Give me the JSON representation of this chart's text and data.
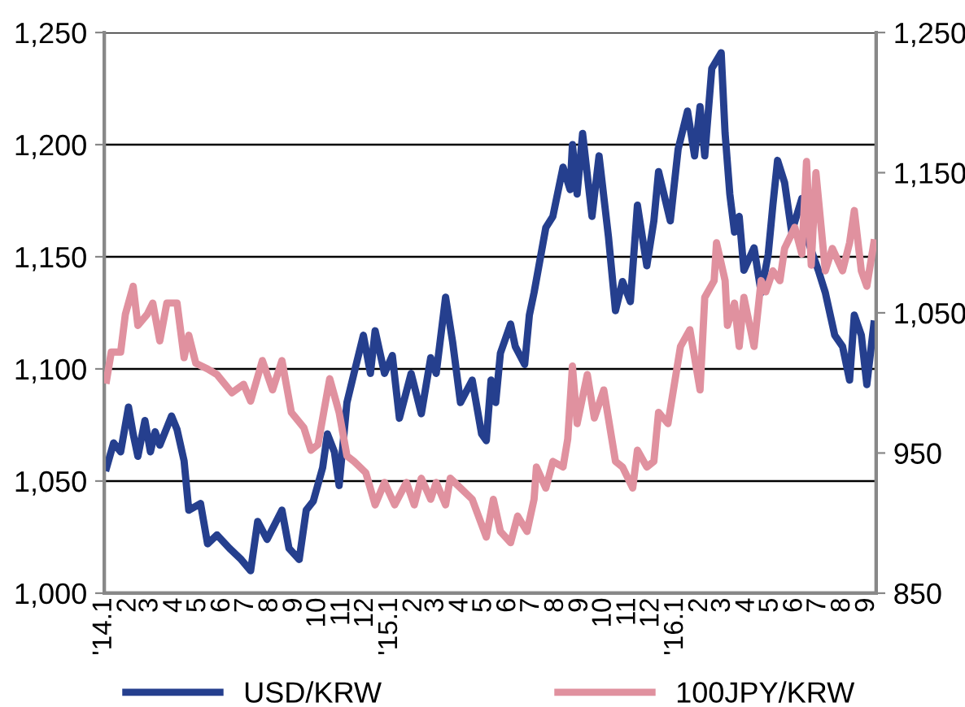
{
  "chart_data": {
    "type": "line",
    "legend": "bottom",
    "grid": "y",
    "line_style": "solid",
    "marker": "none",
    "xlim": [
      "2014-01-01",
      "2016-09-13"
    ],
    "xticks": [
      {
        "value": "2014-01",
        "label": "'14.1"
      },
      {
        "value": "2014-02",
        "label": "2"
      },
      {
        "value": "2014-03",
        "label": "3"
      },
      {
        "value": "2014-04",
        "label": "4"
      },
      {
        "value": "2014-05",
        "label": "5"
      },
      {
        "value": "2014-06",
        "label": "6"
      },
      {
        "value": "2014-07",
        "label": "7"
      },
      {
        "value": "2014-08",
        "label": "8"
      },
      {
        "value": "2014-09",
        "label": "9"
      },
      {
        "value": "2014-10",
        "label": "10"
      },
      {
        "value": "2014-11",
        "label": "11"
      },
      {
        "value": "2014-12",
        "label": "12"
      },
      {
        "value": "2015-01",
        "label": "'15.1"
      },
      {
        "value": "2015-02",
        "label": "2"
      },
      {
        "value": "2015-03",
        "label": "3"
      },
      {
        "value": "2015-04",
        "label": "4"
      },
      {
        "value": "2015-05",
        "label": "5"
      },
      {
        "value": "2015-06",
        "label": "6"
      },
      {
        "value": "2015-07",
        "label": "7"
      },
      {
        "value": "2015-08",
        "label": "8"
      },
      {
        "value": "2015-09",
        "label": "9"
      },
      {
        "value": "2015-10",
        "label": "10"
      },
      {
        "value": "2015-11",
        "label": "11"
      },
      {
        "value": "2015-12",
        "label": "12"
      },
      {
        "value": "2016-01",
        "label": "'16.1"
      },
      {
        "value": "2016-02",
        "label": "2"
      },
      {
        "value": "2016-03",
        "label": "3"
      },
      {
        "value": "2016-04",
        "label": "4"
      },
      {
        "value": "2016-05",
        "label": "5"
      },
      {
        "value": "2016-06",
        "label": "6"
      },
      {
        "value": "2016-07",
        "label": "7"
      },
      {
        "value": "2016-08",
        "label": "8"
      },
      {
        "value": "2016-09",
        "label": "9"
      }
    ],
    "ylim": [
      1000,
      1250
    ],
    "yticks": [
      {
        "value": 1000,
        "label": "1,000"
      },
      {
        "value": 1050,
        "label": "1,050"
      },
      {
        "value": 1100,
        "label": "1,100"
      },
      {
        "value": 1150,
        "label": "1,150"
      },
      {
        "value": 1200,
        "label": "1,200"
      },
      {
        "value": 1250,
        "label": "1,250"
      }
    ],
    "y2lim": [
      850,
      1250
    ],
    "y2ticks": [
      850,
      950,
      {
        "value": 1050,
        "label": "1,050"
      },
      {
        "value": 1150,
        "label": "1,150"
      },
      {
        "value": 1250,
        "label": "1,250"
      }
    ],
    "series": [
      {
        "name": "USD/KRW",
        "color": "#253f8e",
        "x": [
          "2014-01-04",
          "2014-01-13",
          "2014-01-22",
          "2014-02-01",
          "2014-02-07",
          "2014-02-13",
          "2014-02-22",
          "2014-03-01",
          "2014-03-07",
          "2014-03-13",
          "2014-03-28",
          "2014-04-04",
          "2014-04-13",
          "2014-04-19",
          "2014-05-04",
          "2014-05-13",
          "2014-05-25",
          "2014-06-10",
          "2014-06-25",
          "2014-07-07",
          "2014-07-16",
          "2014-07-28",
          "2014-08-16",
          "2014-08-25",
          "2014-09-07",
          "2014-09-16",
          "2014-09-25",
          "2014-10-07",
          "2014-10-13",
          "2014-10-22",
          "2014-10-28",
          "2014-11-07",
          "2014-11-16",
          "2014-11-28",
          "2014-12-07",
          "2014-12-13",
          "2014-12-25",
          "2015-01-04",
          "2015-01-13",
          "2015-01-28",
          "2015-02-10",
          "2015-02-22",
          "2015-03-01",
          "2015-03-13",
          "2015-03-22",
          "2015-04-01",
          "2015-04-16",
          "2015-04-28",
          "2015-05-04",
          "2015-05-10",
          "2015-05-16",
          "2015-05-22",
          "2015-06-04",
          "2015-06-10",
          "2015-06-22",
          "2015-06-28",
          "2015-07-04",
          "2015-07-19",
          "2015-07-28",
          "2015-08-10",
          "2015-08-19",
          "2015-08-22",
          "2015-08-28",
          "2015-09-04",
          "2015-09-16",
          "2015-09-25",
          "2015-10-07",
          "2015-10-16",
          "2015-10-25",
          "2015-11-04",
          "2015-11-13",
          "2015-11-25",
          "2015-12-04",
          "2015-12-10",
          "2015-12-25",
          "2016-01-04",
          "2016-01-16",
          "2016-01-25",
          "2016-02-01",
          "2016-02-07",
          "2016-02-16",
          "2016-02-28",
          "2016-03-04",
          "2016-03-10",
          "2016-03-16",
          "2016-03-22",
          "2016-03-28",
          "2016-04-10",
          "2016-04-19",
          "2016-04-28",
          "2016-05-04",
          "2016-05-10",
          "2016-05-19",
          "2016-05-28",
          "2016-06-10",
          "2016-06-19",
          "2016-07-01",
          "2016-07-10",
          "2016-07-22",
          "2016-08-01",
          "2016-08-10",
          "2016-08-16",
          "2016-08-25",
          "2016-09-01",
          "2016-09-10"
        ],
        "values": [
          1056,
          1067,
          1063,
          1083,
          1071,
          1061,
          1077,
          1063,
          1072,
          1066,
          1079,
          1073,
          1059,
          1037,
          1040,
          1022,
          1026,
          1020,
          1015,
          1010,
          1032,
          1024,
          1037,
          1020,
          1015,
          1037,
          1041,
          1056,
          1071,
          1063,
          1048,
          1085,
          1098,
          1115,
          1098,
          1117,
          1098,
          1106,
          1078,
          1098,
          1080,
          1105,
          1098,
          1132,
          1112,
          1085,
          1095,
          1071,
          1068,
          1095,
          1085,
          1107,
          1120,
          1110,
          1102,
          1124,
          1134,
          1163,
          1168,
          1190,
          1180,
          1200,
          1178,
          1205,
          1168,
          1195,
          1159,
          1126,
          1139,
          1130,
          1173,
          1146,
          1166,
          1188,
          1166,
          1198,
          1215,
          1195,
          1217,
          1195,
          1234,
          1241,
          1205,
          1178,
          1161,
          1168,
          1144,
          1154,
          1134,
          1151,
          1173,
          1193,
          1183,
          1161,
          1176,
          1156,
          1144,
          1134,
          1115,
          1110,
          1095,
          1124,
          1115,
          1093,
          1120
        ]
      },
      {
        "name": "100JPY/KRW",
        "color": "#e0919f",
        "axis": "y2",
        "x": [
          "2014-01-04",
          "2014-01-10",
          "2014-01-22",
          "2014-01-28",
          "2014-02-07",
          "2014-02-13",
          "2014-02-25",
          "2014-03-04",
          "2014-03-13",
          "2014-03-22",
          "2014-04-04",
          "2014-04-13",
          "2014-04-19",
          "2014-04-28",
          "2014-05-13",
          "2014-05-25",
          "2014-06-13",
          "2014-06-28",
          "2014-07-07",
          "2014-07-22",
          "2014-08-04",
          "2014-08-16",
          "2014-08-28",
          "2014-09-13",
          "2014-09-22",
          "2014-10-01",
          "2014-10-16",
          "2014-10-28",
          "2014-11-07",
          "2014-11-16",
          "2014-12-01",
          "2014-12-13",
          "2014-12-25",
          "2015-01-07",
          "2015-01-22",
          "2015-02-01",
          "2015-02-10",
          "2015-02-22",
          "2015-03-01",
          "2015-03-13",
          "2015-03-19",
          "2015-04-01",
          "2015-04-16",
          "2015-05-04",
          "2015-05-13",
          "2015-05-22",
          "2015-06-04",
          "2015-06-13",
          "2015-06-25",
          "2015-07-04",
          "2015-07-07",
          "2015-07-19",
          "2015-07-28",
          "2015-08-10",
          "2015-08-16",
          "2015-08-22",
          "2015-08-28",
          "2015-09-10",
          "2015-09-19",
          "2015-10-01",
          "2015-10-16",
          "2015-10-25",
          "2015-11-07",
          "2015-11-13",
          "2015-11-25",
          "2015-12-04",
          "2015-12-10",
          "2015-12-22",
          "2016-01-07",
          "2016-01-19",
          "2016-02-01",
          "2016-02-07",
          "2016-02-19",
          "2016-02-22",
          "2016-03-04",
          "2016-03-07",
          "2016-03-16",
          "2016-03-22",
          "2016-03-28",
          "2016-04-10",
          "2016-04-19",
          "2016-04-25",
          "2016-05-04",
          "2016-05-13",
          "2016-05-19",
          "2016-06-01",
          "2016-06-10",
          "2016-06-16",
          "2016-06-22",
          "2016-06-28",
          "2016-07-10",
          "2016-07-19",
          "2016-08-01",
          "2016-08-10",
          "2016-08-16",
          "2016-08-25",
          "2016-09-01",
          "2016-09-10"
        ],
        "values": [
          1002,
          1022,
          1022,
          1049,
          1069,
          1041,
          1049,
          1057,
          1030,
          1057,
          1057,
          1018,
          1034,
          1014,
          1010,
          1006,
          993,
          999,
          987,
          1016,
          995,
          1016,
          979,
          968,
          952,
          956,
          1003,
          979,
          948,
          944,
          936,
          913,
          929,
          913,
          929,
          913,
          932,
          917,
          929,
          913,
          932,
          925,
          917,
          890,
          917,
          894,
          886,
          905,
          894,
          917,
          940,
          925,
          944,
          940,
          960,
          1012,
          971,
          1006,
          975,
          995,
          944,
          940,
          925,
          952,
          940,
          944,
          979,
          971,
          1026,
          1038,
          995,
          1061,
          1073,
          1100,
          1073,
          1041,
          1057,
          1026,
          1061,
          1026,
          1073,
          1065,
          1080,
          1073,
          1096,
          1111,
          1092,
          1158,
          1084,
          1150,
          1080,
          1096,
          1080,
          1100,
          1123,
          1080,
          1069,
          1100
        ]
      }
    ]
  }
}
